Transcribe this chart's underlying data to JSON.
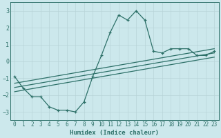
{
  "xlabel": "Humidex (Indice chaleur)",
  "ylabel": "",
  "xlim": [
    -0.5,
    23.5
  ],
  "ylim": [
    -3.5,
    3.5
  ],
  "xticks": [
    0,
    1,
    2,
    3,
    4,
    5,
    6,
    7,
    8,
    9,
    10,
    11,
    12,
    13,
    14,
    15,
    16,
    17,
    18,
    19,
    20,
    21,
    22,
    23
  ],
  "yticks": [
    -3,
    -2,
    -1,
    0,
    1,
    2,
    3
  ],
  "bg_color": "#cce8ec",
  "line_color": "#2d7068",
  "curve_x": [
    0,
    1,
    2,
    3,
    4,
    5,
    6,
    7,
    8,
    9,
    10,
    11,
    12,
    13,
    14,
    15,
    16,
    17,
    18,
    19,
    20,
    21,
    22,
    23
  ],
  "curve_y": [
    -0.9,
    -1.6,
    -2.1,
    -2.1,
    -2.7,
    -2.9,
    -2.9,
    -3.0,
    -2.4,
    -0.9,
    0.35,
    1.7,
    2.75,
    2.45,
    3.0,
    2.45,
    0.6,
    0.5,
    0.75,
    0.75,
    0.75,
    0.35,
    0.35,
    0.6
  ],
  "trend1_x": [
    0,
    23
  ],
  "trend1_y": [
    -1.3,
    0.75
  ],
  "trend2_x": [
    0,
    23
  ],
  "trend2_y": [
    -1.55,
    0.5
  ],
  "trend3_x": [
    0,
    23
  ],
  "trend3_y": [
    -1.8,
    0.25
  ],
  "grid_color": "#b8d4d8",
  "xlabel_fontsize": 6.5,
  "tick_fontsize": 5.5
}
